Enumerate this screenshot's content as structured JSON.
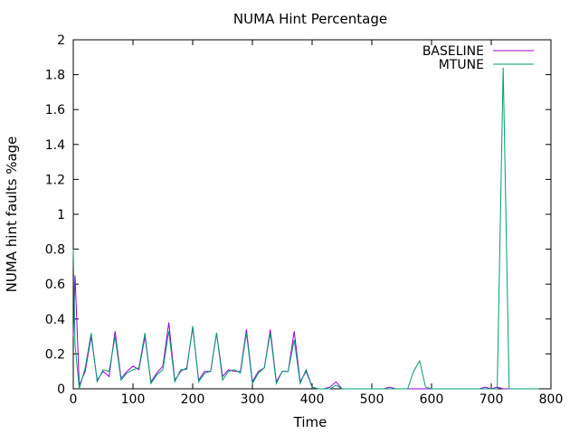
{
  "chart_data": {
    "type": "line",
    "title": "NUMA Hint Percentage",
    "xlabel": "Time",
    "ylabel": "NUMA hint faults %age",
    "xlim": [
      0,
      800
    ],
    "ylim": [
      0,
      2
    ],
    "xticks": [
      "0",
      "100",
      "200",
      "300",
      "400",
      "500",
      "600",
      "700",
      "800"
    ],
    "yticks": [
      "0",
      "0.2",
      "0.4",
      "0.6",
      "0.8",
      "1",
      "1.2",
      "1.4",
      "1.6",
      "1.8",
      "2"
    ],
    "grid": false,
    "legend_position": "top-right",
    "series": [
      {
        "name": "BASELINE",
        "color": "#9400d3",
        "x": [
          0,
          3,
          10,
          20,
          30,
          40,
          50,
          60,
          70,
          80,
          90,
          100,
          110,
          120,
          130,
          140,
          150,
          160,
          170,
          180,
          190,
          200,
          210,
          220,
          230,
          240,
          250,
          260,
          270,
          280,
          290,
          300,
          310,
          320,
          330,
          340,
          350,
          360,
          370,
          380,
          390,
          400,
          410,
          420,
          430,
          440,
          450,
          460,
          470,
          480,
          490,
          500,
          510,
          520,
          530,
          540,
          550,
          560,
          570,
          580,
          590,
          600,
          610,
          620,
          630,
          640,
          650,
          660,
          670,
          680,
          690,
          700,
          710,
          720,
          730,
          740,
          750,
          760,
          770,
          780
        ],
        "values": [
          0.3,
          0.65,
          0.02,
          0.1,
          0.3,
          0.05,
          0.1,
          0.07,
          0.33,
          0.06,
          0.1,
          0.13,
          0.11,
          0.3,
          0.04,
          0.09,
          0.13,
          0.38,
          0.05,
          0.1,
          0.12,
          0.35,
          0.05,
          0.1,
          0.1,
          0.32,
          0.07,
          0.11,
          0.1,
          0.1,
          0.34,
          0.04,
          0.1,
          0.12,
          0.34,
          0.04,
          0.1,
          0.1,
          0.33,
          0.04,
          0.1,
          0.01,
          0.0,
          0.0,
          0.01,
          0.04,
          0.0,
          0.0,
          0.0,
          0.0,
          0.0,
          0.0,
          0.0,
          0.0,
          0.01,
          0.0,
          0.0,
          0.0,
          0.0,
          0.0,
          0.0,
          0.0,
          0.0,
          0.0,
          0.0,
          0.0,
          0.0,
          0.0,
          0.0,
          0.0,
          0.01,
          0.0,
          0.01,
          0.0,
          0.0,
          0.0,
          0.0,
          0.0,
          0.0,
          0.0
        ]
      },
      {
        "name": "MTUNE",
        "color": "#009e73",
        "x": [
          0,
          3,
          10,
          20,
          30,
          40,
          50,
          60,
          70,
          80,
          90,
          100,
          110,
          120,
          130,
          140,
          150,
          160,
          170,
          180,
          190,
          200,
          210,
          220,
          230,
          240,
          250,
          260,
          270,
          280,
          290,
          300,
          310,
          320,
          330,
          340,
          350,
          360,
          370,
          380,
          390,
          400,
          410,
          420,
          430,
          440,
          450,
          460,
          470,
          480,
          490,
          500,
          510,
          520,
          530,
          540,
          550,
          560,
          570,
          580,
          590,
          600,
          610,
          620,
          630,
          640,
          650,
          660,
          670,
          680,
          690,
          700,
          710,
          720,
          730,
          740,
          750,
          760,
          770,
          780
        ],
        "values": [
          0.8,
          0.25,
          0.0,
          0.12,
          0.32,
          0.04,
          0.11,
          0.1,
          0.3,
          0.05,
          0.09,
          0.11,
          0.12,
          0.32,
          0.03,
          0.08,
          0.11,
          0.33,
          0.04,
          0.11,
          0.11,
          0.36,
          0.04,
          0.09,
          0.1,
          0.32,
          0.05,
          0.1,
          0.11,
          0.09,
          0.32,
          0.03,
          0.09,
          0.12,
          0.32,
          0.03,
          0.1,
          0.1,
          0.28,
          0.03,
          0.11,
          0.01,
          0.0,
          0.0,
          0.0,
          0.02,
          0.0,
          0.0,
          0.0,
          0.0,
          0.0,
          0.0,
          0.0,
          0.0,
          0.0,
          0.0,
          0.0,
          0.0,
          0.1,
          0.16,
          0.01,
          0.0,
          0.0,
          0.0,
          0.0,
          0.0,
          0.0,
          0.0,
          0.0,
          0.0,
          0.0,
          0.0,
          0.0,
          1.84,
          0.0,
          0.0,
          0.0,
          0.0,
          0.0,
          0.0
        ]
      }
    ]
  }
}
